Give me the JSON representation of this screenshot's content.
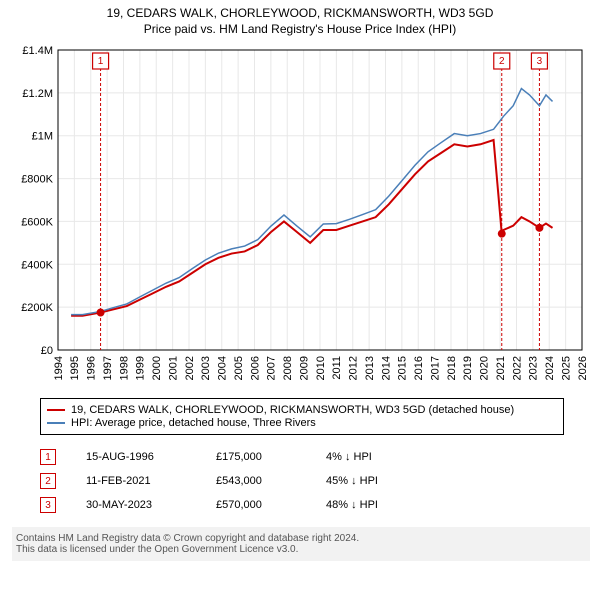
{
  "title_line1": "19, CEDARS WALK, CHORLEYWOOD, RICKMANSWORTH, WD3 5GD",
  "title_line2": "Price paid vs. HM Land Registry's House Price Index (HPI)",
  "chart": {
    "type": "line",
    "background_color": "#ffffff",
    "plot_bg": "#ffffff",
    "grid_color": "#e8e8e8",
    "axis_color": "#000000",
    "x": {
      "min": 1994,
      "max": 2026,
      "ticks": [
        1994,
        1995,
        1996,
        1997,
        1998,
        1999,
        2000,
        2001,
        2002,
        2003,
        2004,
        2005,
        2006,
        2007,
        2008,
        2009,
        2010,
        2011,
        2012,
        2013,
        2014,
        2015,
        2016,
        2017,
        2018,
        2019,
        2020,
        2021,
        2022,
        2023,
        2024,
        2025,
        2026
      ]
    },
    "y": {
      "min": 0,
      "max": 1400000,
      "ticks": [
        0,
        200000,
        400000,
        600000,
        800000,
        1000000,
        1200000,
        1400000
      ],
      "labels": [
        "£0",
        "£200K",
        "£400K",
        "£600K",
        "£800K",
        "£1M",
        "£1.2M",
        "£1.4M"
      ]
    },
    "series": [
      {
        "name": "price_paid",
        "color": "#cc0000",
        "width": 2,
        "points": [
          [
            1994.8,
            160000
          ],
          [
            1995.5,
            160000
          ],
          [
            1996.6,
            175000
          ],
          [
            1997.4,
            190000
          ],
          [
            1998.2,
            205000
          ],
          [
            1999.0,
            235000
          ],
          [
            1999.8,
            265000
          ],
          [
            2000.6,
            295000
          ],
          [
            2001.4,
            320000
          ],
          [
            2002.2,
            360000
          ],
          [
            2003.0,
            400000
          ],
          [
            2003.8,
            430000
          ],
          [
            2004.6,
            450000
          ],
          [
            2005.4,
            460000
          ],
          [
            2006.2,
            490000
          ],
          [
            2007.0,
            550000
          ],
          [
            2007.8,
            600000
          ],
          [
            2008.6,
            550000
          ],
          [
            2009.4,
            500000
          ],
          [
            2010.2,
            560000
          ],
          [
            2011.0,
            560000
          ],
          [
            2011.8,
            580000
          ],
          [
            2012.6,
            600000
          ],
          [
            2013.4,
            620000
          ],
          [
            2014.2,
            680000
          ],
          [
            2015.0,
            750000
          ],
          [
            2015.8,
            820000
          ],
          [
            2016.6,
            880000
          ],
          [
            2017.4,
            920000
          ],
          [
            2018.2,
            960000
          ],
          [
            2019.0,
            950000
          ],
          [
            2019.8,
            960000
          ],
          [
            2020.6,
            980000
          ],
          [
            2021.1,
            543000
          ],
          [
            2021.2,
            560000
          ],
          [
            2021.8,
            580000
          ],
          [
            2022.3,
            620000
          ],
          [
            2022.8,
            600000
          ],
          [
            2023.4,
            570000
          ],
          [
            2023.8,
            590000
          ],
          [
            2024.2,
            570000
          ]
        ]
      },
      {
        "name": "hpi",
        "color": "#4a7fb8",
        "width": 1.5,
        "points": [
          [
            1994.8,
            165000
          ],
          [
            1995.5,
            165000
          ],
          [
            1996.6,
            180000
          ],
          [
            1997.4,
            198000
          ],
          [
            1998.2,
            215000
          ],
          [
            1999.0,
            248000
          ],
          [
            1999.8,
            280000
          ],
          [
            2000.6,
            312000
          ],
          [
            2001.4,
            338000
          ],
          [
            2002.2,
            380000
          ],
          [
            2003.0,
            420000
          ],
          [
            2003.8,
            452000
          ],
          [
            2004.6,
            472000
          ],
          [
            2005.4,
            485000
          ],
          [
            2006.2,
            515000
          ],
          [
            2007.0,
            578000
          ],
          [
            2007.8,
            630000
          ],
          [
            2008.6,
            578000
          ],
          [
            2009.4,
            528000
          ],
          [
            2010.2,
            588000
          ],
          [
            2011.0,
            590000
          ],
          [
            2011.8,
            610000
          ],
          [
            2012.6,
            632000
          ],
          [
            2013.4,
            655000
          ],
          [
            2014.2,
            718000
          ],
          [
            2015.0,
            790000
          ],
          [
            2015.8,
            862000
          ],
          [
            2016.6,
            925000
          ],
          [
            2017.4,
            968000
          ],
          [
            2018.2,
            1010000
          ],
          [
            2019.0,
            1000000
          ],
          [
            2019.8,
            1010000
          ],
          [
            2020.6,
            1030000
          ],
          [
            2021.2,
            1090000
          ],
          [
            2021.8,
            1140000
          ],
          [
            2022.3,
            1220000
          ],
          [
            2022.8,
            1190000
          ],
          [
            2023.4,
            1140000
          ],
          [
            2023.8,
            1190000
          ],
          [
            2024.2,
            1160000
          ]
        ]
      }
    ],
    "markers": [
      {
        "n": "1",
        "year": 1996.6,
        "y_top": 1280000
      },
      {
        "n": "2",
        "year": 2021.1,
        "y_top": 1280000
      },
      {
        "n": "3",
        "year": 2023.4,
        "y_top": 1280000
      }
    ],
    "sale_dots": [
      {
        "year": 1996.6,
        "price": 175000
      },
      {
        "year": 2021.1,
        "price": 543000
      },
      {
        "year": 2023.4,
        "price": 570000
      }
    ]
  },
  "legend": [
    {
      "color": "#cc0000",
      "label": "19, CEDARS WALK, CHORLEYWOOD, RICKMANSWORTH, WD3 5GD (detached house)"
    },
    {
      "color": "#4a7fb8",
      "label": "HPI: Average price, detached house, Three Rivers"
    }
  ],
  "transactions": [
    {
      "n": "1",
      "date": "15-AUG-1996",
      "price": "£175,000",
      "delta": "4% ↓ HPI"
    },
    {
      "n": "2",
      "date": "11-FEB-2021",
      "price": "£543,000",
      "delta": "45% ↓ HPI"
    },
    {
      "n": "3",
      "date": "30-MAY-2023",
      "price": "£570,000",
      "delta": "48% ↓ HPI"
    }
  ],
  "footer": {
    "line1": "Contains HM Land Registry data © Crown copyright and database right 2024.",
    "line2": "This data is licensed under the Open Government Licence v3.0."
  }
}
